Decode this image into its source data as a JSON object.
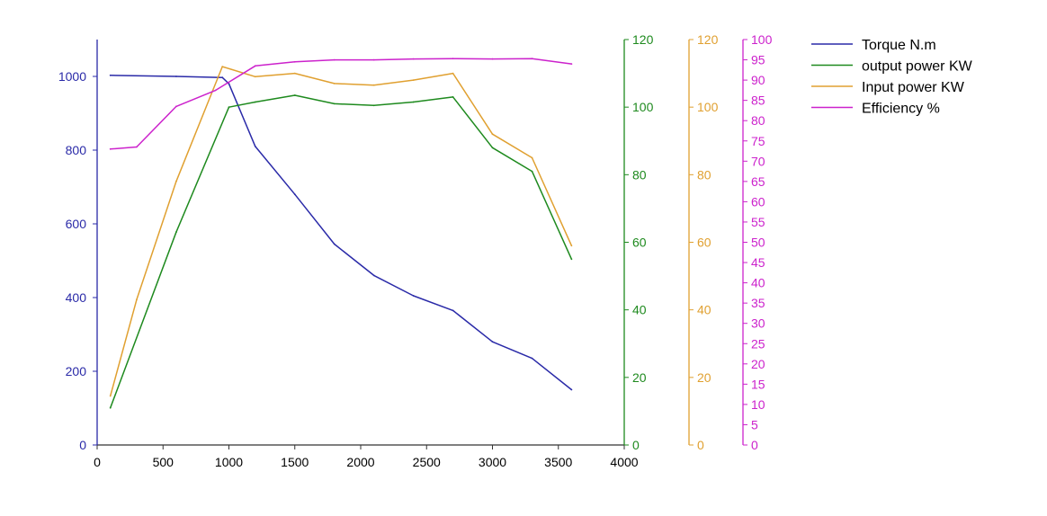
{
  "chart_data": {
    "type": "line",
    "x": {
      "range": [
        0,
        4000
      ],
      "ticks": [
        0,
        500,
        1000,
        1500,
        2000,
        2500,
        3000,
        3500,
        4000
      ]
    },
    "y_axes": [
      {
        "id": "torque",
        "side": "left",
        "range": [
          0,
          1100
        ],
        "ticks": [
          0,
          200,
          400,
          600,
          800,
          1000
        ],
        "color": "#2a2aa8"
      },
      {
        "id": "output",
        "side": "right",
        "range": [
          0,
          120
        ],
        "ticks": [
          0,
          20,
          40,
          60,
          80,
          100,
          120
        ],
        "color": "#1e8a1e"
      },
      {
        "id": "input",
        "side": "right",
        "range": [
          0,
          120
        ],
        "ticks": [
          0,
          20,
          40,
          60,
          80,
          100,
          120
        ],
        "color": "#e0a030"
      },
      {
        "id": "efficiency",
        "side": "right",
        "range": [
          0,
          100
        ],
        "ticks": [
          0,
          5,
          10,
          15,
          20,
          25,
          30,
          35,
          40,
          45,
          50,
          55,
          60,
          65,
          70,
          75,
          80,
          85,
          90,
          95,
          100
        ],
        "color": "#cc22cc"
      }
    ],
    "series": [
      {
        "name": "Torque N.m",
        "axis": "torque",
        "color": "#2a2aa8",
        "points": [
          [
            100,
            1003
          ],
          [
            600,
            1000
          ],
          [
            950,
            997
          ],
          [
            1000,
            980
          ],
          [
            1200,
            810
          ],
          [
            1500,
            680
          ],
          [
            1800,
            545
          ],
          [
            2100,
            460
          ],
          [
            2400,
            405
          ],
          [
            2700,
            365
          ],
          [
            3000,
            280
          ],
          [
            3300,
            235
          ],
          [
            3600,
            150
          ]
        ]
      },
      {
        "name": "output power KW",
        "axis": "output",
        "color": "#1e8a1e",
        "points": [
          [
            100,
            11
          ],
          [
            600,
            63
          ],
          [
            1000,
            100
          ],
          [
            1200,
            101.5
          ],
          [
            1500,
            103.5
          ],
          [
            1800,
            101
          ],
          [
            2100,
            100.5
          ],
          [
            2400,
            101.5
          ],
          [
            2700,
            103
          ],
          [
            3000,
            88
          ],
          [
            3300,
            81
          ],
          [
            3600,
            55
          ]
        ]
      },
      {
        "name": "Input power KW",
        "axis": "input",
        "color": "#e0a030",
        "points": [
          [
            100,
            14.5
          ],
          [
            300,
            43
          ],
          [
            600,
            78
          ],
          [
            950,
            112
          ],
          [
            1200,
            109
          ],
          [
            1500,
            110
          ],
          [
            1800,
            107
          ],
          [
            2100,
            106.5
          ],
          [
            2400,
            108
          ],
          [
            2700,
            110
          ],
          [
            3000,
            92
          ],
          [
            3300,
            85
          ],
          [
            3600,
            59
          ]
        ]
      },
      {
        "name": "Efficiency %",
        "axis": "efficiency",
        "color": "#cc22cc",
        "points": [
          [
            100,
            73
          ],
          [
            300,
            73.5
          ],
          [
            600,
            83.5
          ],
          [
            900,
            87.5
          ],
          [
            1200,
            93.5
          ],
          [
            1500,
            94.5
          ],
          [
            1800,
            95
          ],
          [
            2100,
            95
          ],
          [
            2400,
            95.2
          ],
          [
            2700,
            95.3
          ],
          [
            3000,
            95.2
          ],
          [
            3300,
            95.3
          ],
          [
            3600,
            94
          ]
        ]
      }
    ],
    "legend": {
      "placement": "top-right",
      "entries": [
        "Torque N.m",
        "output power KW",
        "Input power KW",
        "Efficiency %"
      ]
    },
    "grid": false
  }
}
